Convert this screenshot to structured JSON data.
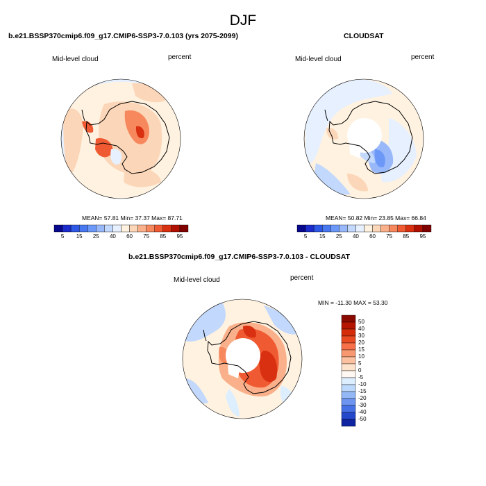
{
  "main_title": "DJF",
  "panels": [
    {
      "title": "b.e21.BSSP370cmip6.f09_g17.CMIP6-SSP3-7.0.103 (yrs 2075-2099)",
      "left_label": "Mid-level cloud",
      "right_label": "percent",
      "stats": "MEAN=  57.81  Min=  37.37  Max=  87.71"
    },
    {
      "title": "CLOUDSAT",
      "left_label": "Mid-level cloud",
      "right_label": "percent",
      "stats": "MEAN=  50.82  Min=  23.85  Max=  66.84"
    },
    {
      "title": "b.e21.BSSP370cmip6.f09_g17.CMIP6-SSP3-7.0.103 - CLOUDSAT",
      "left_label": "Mid-level cloud",
      "right_label": "percent",
      "stats": "MIN = -11.30 MAX =  53.30"
    }
  ],
  "chart_data": [
    {
      "type": "heatmap",
      "projection": "south-polar-stereographic",
      "variable": "Mid-level cloud",
      "units": "percent",
      "mean": 57.81,
      "min": 37.37,
      "max": 87.71,
      "colorbar": {
        "orientation": "horizontal",
        "levels": [
          5,
          10,
          15,
          20,
          25,
          30,
          40,
          50,
          60,
          65,
          70,
          75,
          80,
          85,
          90,
          95
        ],
        "tick_labels": [
          "5",
          "15",
          "25",
          "40",
          "60",
          "75",
          "85",
          "95"
        ],
        "colors": [
          "#08088c",
          "#1c2ccc",
          "#2e58e6",
          "#4878f0",
          "#6c98f8",
          "#98b8fa",
          "#c2d8fc",
          "#e6f0ff",
          "#fff2e0",
          "#fcd6b8",
          "#fab08a",
          "#f7885e",
          "#f05a32",
          "#d83010",
          "#b01000",
          "#800000"
        ]
      }
    },
    {
      "type": "heatmap",
      "projection": "south-polar-stereographic",
      "variable": "Mid-level cloud",
      "units": "percent",
      "mean": 50.82,
      "min": 23.85,
      "max": 66.84,
      "colorbar": {
        "orientation": "horizontal",
        "levels": [
          5,
          10,
          15,
          20,
          25,
          30,
          40,
          50,
          60,
          65,
          70,
          75,
          80,
          85,
          90,
          95
        ],
        "tick_labels": [
          "5",
          "15",
          "25",
          "40",
          "60",
          "75",
          "85",
          "95"
        ],
        "colors": [
          "#08088c",
          "#1c2ccc",
          "#2e58e6",
          "#4878f0",
          "#6c98f8",
          "#98b8fa",
          "#c2d8fc",
          "#e6f0ff",
          "#fff2e0",
          "#fcd6b8",
          "#fab08a",
          "#f7885e",
          "#f05a32",
          "#d83010",
          "#b01000",
          "#800000"
        ]
      }
    },
    {
      "type": "heatmap",
      "projection": "south-polar-stereographic",
      "variable": "Mid-level cloud",
      "units": "percent",
      "min": -11.3,
      "max": 53.3,
      "colorbar": {
        "orientation": "vertical",
        "tick_labels": [
          "50",
          "40",
          "30",
          "20",
          "15",
          "10",
          "5",
          "0",
          "-5",
          "-10",
          "-15",
          "-20",
          "-30",
          "-40",
          "-50"
        ],
        "colors": [
          "#8a0a00",
          "#b41400",
          "#d42c0a",
          "#ea4a22",
          "#f7704a",
          "#f89870",
          "#fbc0a0",
          "#fde2cc",
          "#fff8f2",
          "#ddeeff",
          "#bcd8fa",
          "#94b8f6",
          "#6c94f0",
          "#4670e6",
          "#2448cc",
          "#0e24a0"
        ]
      }
    }
  ]
}
